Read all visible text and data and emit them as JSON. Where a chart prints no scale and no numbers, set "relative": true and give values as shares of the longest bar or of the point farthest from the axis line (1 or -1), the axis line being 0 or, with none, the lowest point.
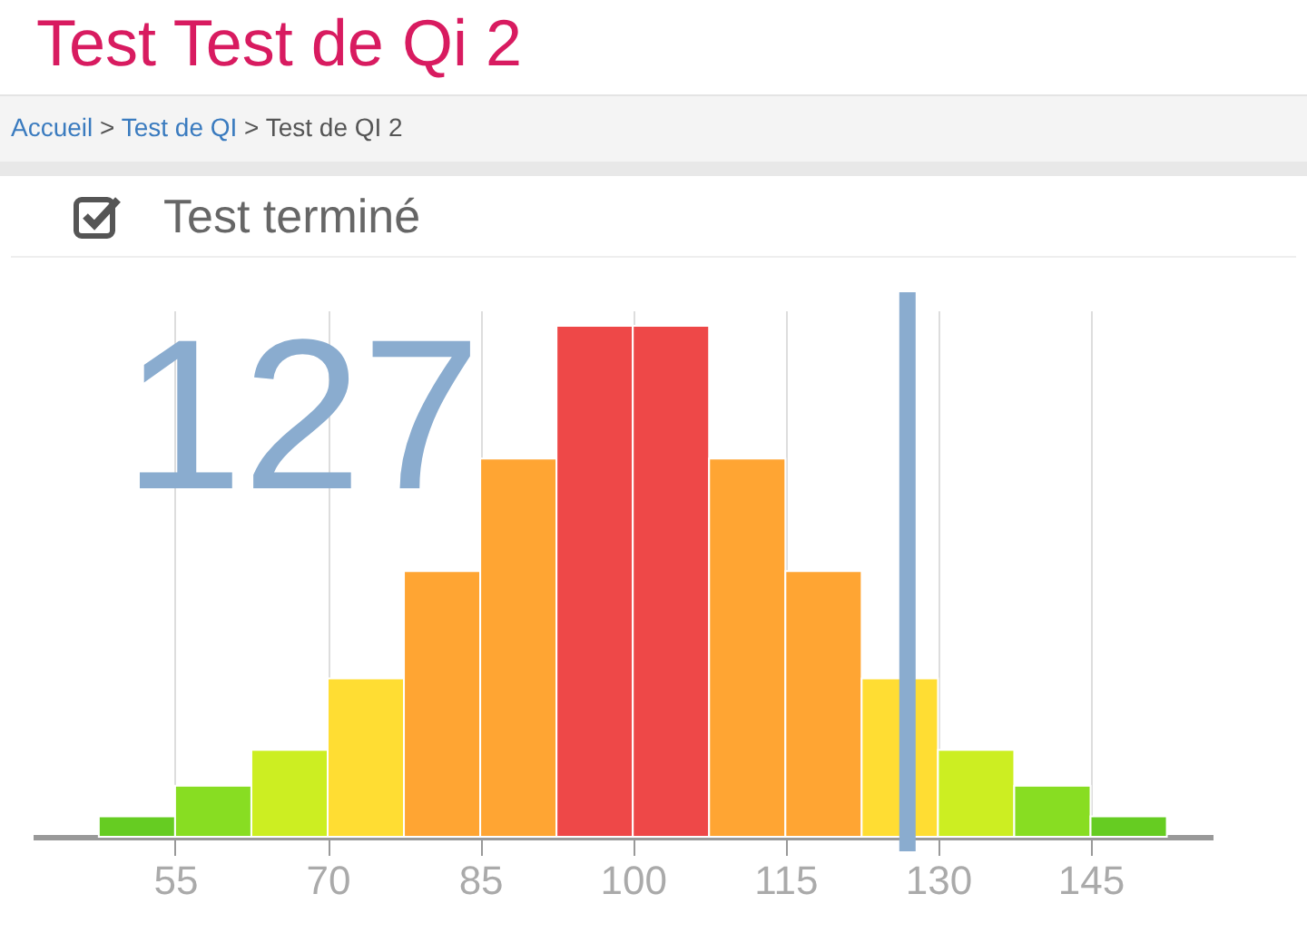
{
  "chart_data": {
    "type": "bar",
    "title": "Test Test de Qi 2",
    "subtitle": "Accueil > Test de QI > Test de QI 2",
    "annotations": [
      "Test terminé"
    ],
    "relative": true,
    "x": [
      51.25,
      58.75,
      66.25,
      73.75,
      81.25,
      88.75,
      96.25,
      103.75,
      111.25,
      118.75,
      126.25,
      133.75,
      141.25,
      148.75
    ],
    "values": [
      0.04,
      0.1,
      0.17,
      0.31,
      0.52,
      0.74,
      1,
      1,
      0.74,
      0.52,
      0.31,
      0.17,
      0.1,
      0.04
    ],
    "colors": [
      "#66cc22",
      "#88dd22",
      "#ccee22",
      "#ffdd33",
      "#ffa533",
      "#ffa533",
      "#ee4848",
      "#ee4848",
      "#ffa533",
      "#ffa533",
      "#ffdd33",
      "#ccee22",
      "#88dd22",
      "#66cc22"
    ],
    "xlim": [
      41,
      157
    ],
    "xticks": [
      55,
      70,
      85,
      100,
      115,
      130,
      145
    ],
    "grid": "x",
    "ref_lines": [
      {
        "axis": "x",
        "value": 127,
        "label": "127",
        "color": "#8aaccf"
      }
    ]
  }
}
